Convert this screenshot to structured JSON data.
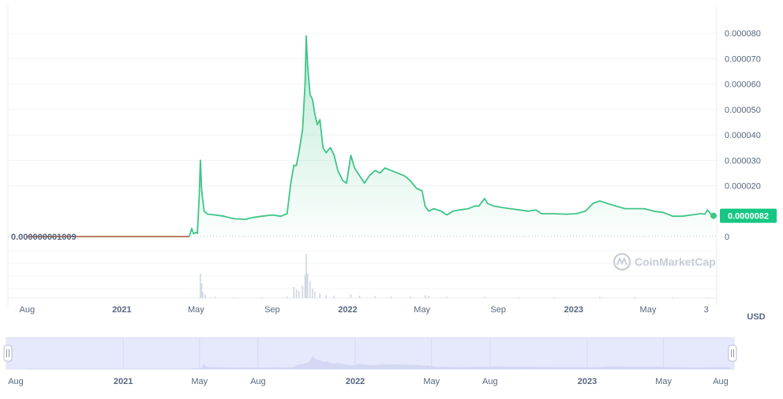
{
  "currency_label": "USD",
  "watermark": "CoinMarketCap",
  "colors": {
    "price_line": "#3ec587",
    "price_fill": "#3ec587",
    "early_line": "#a0522d",
    "volume_bar": "#cfd6e4",
    "navigator_fill": "#e6e8fb",
    "navigator_line": "#d2d6f2",
    "label_bg": "#16c784"
  },
  "chart_data": {
    "type": "line",
    "currency": "USD",
    "y_axis_ticks": [
      "0.000080",
      "0.000070",
      "0.000060",
      "0.000050",
      "0.000040",
      "0.000030",
      "0.000020",
      "0"
    ],
    "ylim": [
      0,
      9e-05
    ],
    "x_axis_labels": [
      "Aug",
      "2021",
      "May",
      "Sep",
      "2022",
      "May",
      "Sep",
      "2023",
      "May",
      "3"
    ],
    "x_axis_bold": [
      "2021",
      "2022",
      "2023"
    ],
    "start_value_label": "0.000000001009",
    "current_value_label": "0.0000082",
    "current_value": 8.2e-06,
    "series": [
      {
        "points": [
          [
            "2020-08-01",
            1e-09
          ],
          [
            "2020-10-01",
            1e-09
          ],
          [
            "2020-12-01",
            1e-09
          ],
          [
            "2021-02-01",
            1e-09
          ],
          [
            "2021-04-01",
            1e-09
          ],
          [
            "2021-04-20",
            1e-09
          ],
          [
            "2021-04-24",
            3.2e-06
          ],
          [
            "2021-04-27",
            1.1e-06
          ],
          [
            "2021-05-01",
            1.7e-06
          ],
          [
            "2021-05-03",
            1.2e-06
          ],
          [
            "2021-05-06",
            1.5e-05
          ],
          [
            "2021-05-08",
            3e-05
          ],
          [
            "2021-05-10",
            1.8e-05
          ],
          [
            "2021-05-14",
            1e-05
          ],
          [
            "2021-05-20",
            8.8e-06
          ],
          [
            "2021-06-01",
            8.5e-06
          ],
          [
            "2021-06-15",
            8e-06
          ],
          [
            "2021-07-01",
            7e-06
          ],
          [
            "2021-07-20",
            6.8e-06
          ],
          [
            "2021-08-01",
            7.5e-06
          ],
          [
            "2021-08-15",
            8e-06
          ],
          [
            "2021-09-01",
            8.5e-06
          ],
          [
            "2021-09-15",
            8e-06
          ],
          [
            "2021-09-25",
            9e-06
          ],
          [
            "2021-10-01",
            2.1e-05
          ],
          [
            "2021-10-06",
            2.8e-05
          ],
          [
            "2021-10-10",
            2.8e-05
          ],
          [
            "2021-10-14",
            3.3e-05
          ],
          [
            "2021-10-20",
            4.2e-05
          ],
          [
            "2021-10-24",
            6e-05
          ],
          [
            "2021-10-26",
            7.9e-05
          ],
          [
            "2021-10-28",
            6.8e-05
          ],
          [
            "2021-11-01",
            5.6e-05
          ],
          [
            "2021-11-05",
            5.4e-05
          ],
          [
            "2021-11-09",
            4.8e-05
          ],
          [
            "2021-11-13",
            4.4e-05
          ],
          [
            "2021-11-17",
            4.6e-05
          ],
          [
            "2021-11-22",
            3.5e-05
          ],
          [
            "2021-11-27",
            3.3e-05
          ],
          [
            "2021-12-04",
            3.5e-05
          ],
          [
            "2021-12-10",
            3.2e-05
          ],
          [
            "2021-12-16",
            2.6e-05
          ],
          [
            "2021-12-24",
            2.2e-05
          ],
          [
            "2021-12-30",
            2.1e-05
          ],
          [
            "2022-01-06",
            3.2e-05
          ],
          [
            "2022-01-12",
            2.7e-05
          ],
          [
            "2022-01-20",
            2.4e-05
          ],
          [
            "2022-01-28",
            2.1e-05
          ],
          [
            "2022-02-05",
            2.4e-05
          ],
          [
            "2022-02-14",
            2.6e-05
          ],
          [
            "2022-02-22",
            2.5e-05
          ],
          [
            "2022-03-02",
            2.7e-05
          ],
          [
            "2022-03-12",
            2.6e-05
          ],
          [
            "2022-03-22",
            2.5e-05
          ],
          [
            "2022-04-02",
            2.4e-05
          ],
          [
            "2022-04-12",
            2.2e-05
          ],
          [
            "2022-04-22",
            1.9e-05
          ],
          [
            "2022-05-01",
            1.8e-05
          ],
          [
            "2022-05-06",
            1.2e-05
          ],
          [
            "2022-05-12",
            1e-05
          ],
          [
            "2022-05-20",
            1.1e-05
          ],
          [
            "2022-06-01",
            1e-05
          ],
          [
            "2022-06-10",
            8.5e-06
          ],
          [
            "2022-06-20",
            1e-05
          ],
          [
            "2022-07-01",
            1.05e-05
          ],
          [
            "2022-07-15",
            1.1e-05
          ],
          [
            "2022-07-25",
            1.2e-05
          ],
          [
            "2022-08-01",
            1.2e-05
          ],
          [
            "2022-08-10",
            1.5e-05
          ],
          [
            "2022-08-15",
            1.3e-05
          ],
          [
            "2022-08-25",
            1.2e-05
          ],
          [
            "2022-09-05",
            1.15e-05
          ],
          [
            "2022-09-20",
            1.1e-05
          ],
          [
            "2022-10-05",
            1.05e-05
          ],
          [
            "2022-10-20",
            1e-05
          ],
          [
            "2022-11-01",
            1.05e-05
          ],
          [
            "2022-11-10",
            9e-06
          ],
          [
            "2022-11-20",
            9e-06
          ],
          [
            "2022-12-01",
            9e-06
          ],
          [
            "2022-12-20",
            8.8e-06
          ],
          [
            "2023-01-05",
            9e-06
          ],
          [
            "2023-01-20",
            1e-05
          ],
          [
            "2023-02-01",
            1.3e-05
          ],
          [
            "2023-02-12",
            1.4e-05
          ],
          [
            "2023-02-25",
            1.3e-05
          ],
          [
            "2023-03-10",
            1.2e-05
          ],
          [
            "2023-03-25",
            1.1e-05
          ],
          [
            "2023-04-10",
            1.1e-05
          ],
          [
            "2023-04-25",
            1.1e-05
          ],
          [
            "2023-05-10",
            1e-05
          ],
          [
            "2023-05-25",
            9.5e-06
          ],
          [
            "2023-06-10",
            8e-06
          ],
          [
            "2023-06-25",
            8e-06
          ],
          [
            "2023-07-10",
            8.5e-06
          ],
          [
            "2023-07-25",
            9e-06
          ],
          [
            "2023-08-01",
            8.8e-06
          ],
          [
            "2023-08-05",
            1.05e-05
          ],
          [
            "2023-08-10",
            9e-06
          ],
          [
            "2023-08-14",
            8.2e-06
          ]
        ]
      }
    ],
    "volume_series": [
      [
        "2021-05-08",
        1.0
      ],
      [
        "2021-05-10",
        0.6
      ],
      [
        "2021-05-12",
        0.25
      ],
      [
        "2021-05-16",
        0.15
      ],
      [
        "2021-06-01",
        0.05
      ],
      [
        "2021-07-01",
        0.04
      ],
      [
        "2021-08-15",
        0.04
      ],
      [
        "2021-09-25",
        0.06
      ],
      [
        "2021-10-06",
        0.45
      ],
      [
        "2021-10-10",
        0.35
      ],
      [
        "2021-10-14",
        0.3
      ],
      [
        "2021-10-20",
        0.5
      ],
      [
        "2021-10-24",
        0.95
      ],
      [
        "2021-10-26",
        1.8
      ],
      [
        "2021-10-28",
        1.0
      ],
      [
        "2021-11-01",
        0.7
      ],
      [
        "2021-11-05",
        0.4
      ],
      [
        "2021-11-09",
        0.25
      ],
      [
        "2021-11-17",
        0.2
      ],
      [
        "2021-11-27",
        0.12
      ],
      [
        "2021-12-10",
        0.1
      ],
      [
        "2022-01-06",
        0.15
      ],
      [
        "2022-01-20",
        0.1
      ],
      [
        "2022-02-14",
        0.08
      ],
      [
        "2022-03-12",
        0.06
      ],
      [
        "2022-04-12",
        0.06
      ],
      [
        "2022-05-06",
        0.12
      ],
      [
        "2022-05-12",
        0.1
      ],
      [
        "2022-06-10",
        0.05
      ],
      [
        "2022-08-10",
        0.05
      ],
      [
        "2022-10-05",
        0.04
      ],
      [
        "2022-12-01",
        0.04
      ],
      [
        "2023-02-12",
        0.05
      ],
      [
        "2023-04-10",
        0.04
      ],
      [
        "2023-06-10",
        0.04
      ],
      [
        "2023-08-05",
        0.04
      ]
    ],
    "navigator_labels": [
      "Aug",
      "2021",
      "May",
      "Aug",
      "2022",
      "May",
      "Aug",
      "2023",
      "May",
      "Aug"
    ],
    "navigator_bold": [
      "2021",
      "2022",
      "2023"
    ]
  }
}
